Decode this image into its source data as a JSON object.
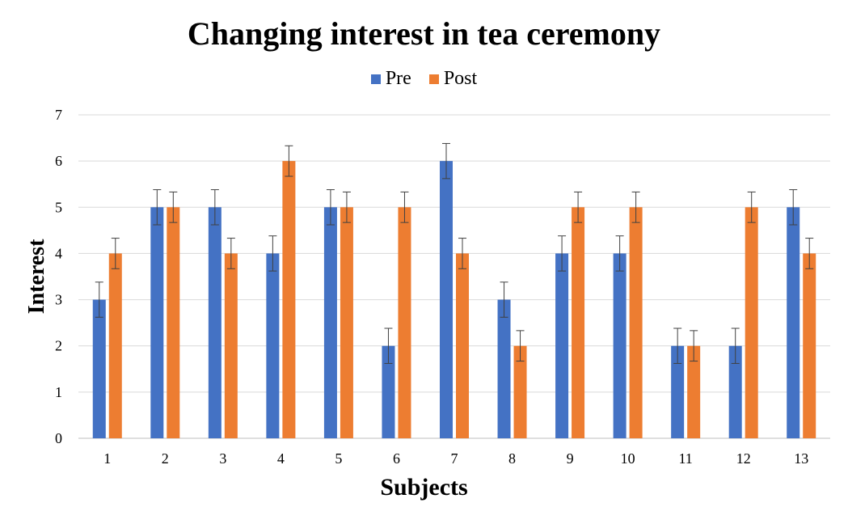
{
  "chart_data": {
    "type": "bar",
    "title": "Changing interest in tea ceremony",
    "xlabel": "Subjects",
    "ylabel": "Interest",
    "ylim": [
      0,
      7
    ],
    "yticks": [
      "0",
      "1",
      "2",
      "3",
      "4",
      "5",
      "6",
      "7"
    ],
    "categories": [
      "1",
      "2",
      "3",
      "4",
      "5",
      "6",
      "7",
      "8",
      "9",
      "10",
      "11",
      "12",
      "13"
    ],
    "grid": true,
    "legend_position": "top",
    "error_bars": true,
    "series": [
      {
        "name": "Pre",
        "color": "#4472C4",
        "values": [
          3,
          5,
          5,
          4,
          5,
          2,
          6,
          3,
          4,
          4,
          2,
          2,
          5
        ],
        "errors": [
          0.38,
          0.38,
          0.38,
          0.38,
          0.38,
          0.38,
          0.38,
          0.38,
          0.38,
          0.38,
          0.38,
          0.38,
          0.38
        ]
      },
      {
        "name": "Post",
        "color": "#ED7D31",
        "values": [
          4,
          5,
          4,
          6,
          5,
          5,
          4,
          2,
          5,
          5,
          2,
          5,
          4
        ],
        "errors": [
          0.33,
          0.33,
          0.33,
          0.33,
          0.33,
          0.33,
          0.33,
          0.33,
          0.33,
          0.33,
          0.33,
          0.33,
          0.33
        ]
      }
    ]
  }
}
